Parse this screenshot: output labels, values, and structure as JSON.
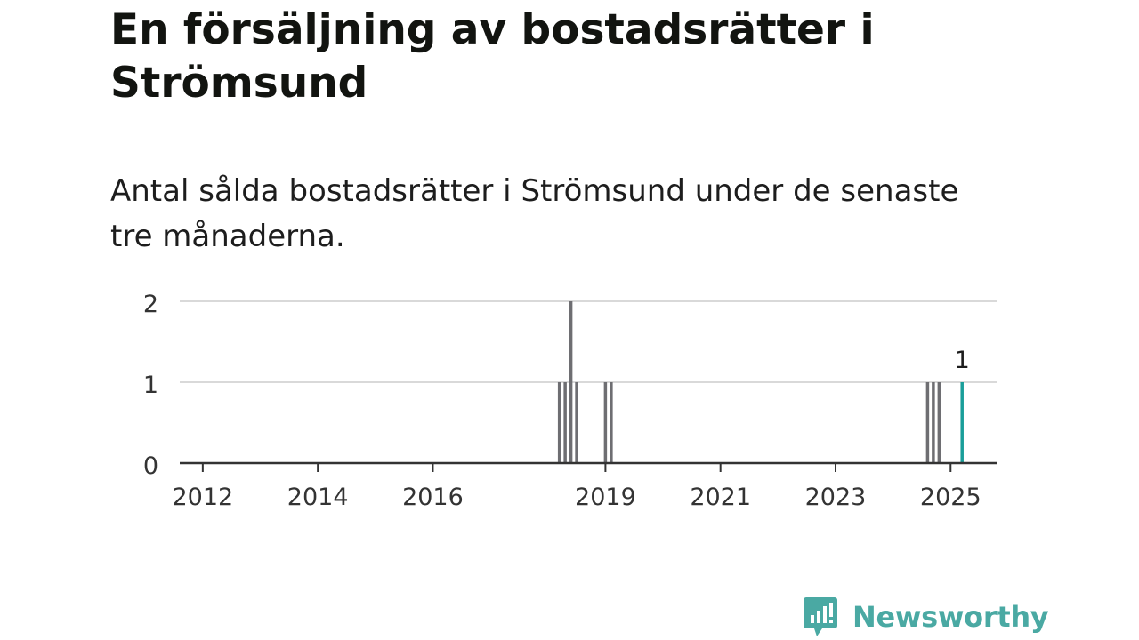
{
  "title": "En försäljning av bostadsrätter i Strömsund",
  "subtitle": "Antal sålda bostadsrätter i Strömsund under de senaste tre månaderna.",
  "brand": {
    "name": "Newsworthy",
    "icon": "newsworthy-logo-icon",
    "color": "#4aa9a3"
  },
  "chart_data": {
    "type": "bar",
    "title": "",
    "xlabel": "",
    "ylabel": "",
    "ylim": [
      0,
      2
    ],
    "yticks": [
      0,
      1,
      2
    ],
    "xlim": [
      2011.6,
      2025.8
    ],
    "xticks": [
      "2012",
      "2014",
      "2016",
      "2019",
      "2021",
      "2023",
      "2025"
    ],
    "grid": true,
    "colors": {
      "bar": "#6e6e72",
      "highlight": "#1a9e9a",
      "grid": "#d9d9d9",
      "axis": "#333333"
    },
    "x": [
      2018.2,
      2018.3,
      2018.4,
      2018.5,
      2019.0,
      2019.1,
      2024.6,
      2024.7,
      2024.8,
      2025.2
    ],
    "values": [
      1,
      1,
      2,
      1,
      1,
      1,
      1,
      1,
      1,
      1
    ],
    "highlight_index": 9,
    "annotations": [
      {
        "x": 2025.2,
        "value": 1,
        "text": "1"
      }
    ]
  }
}
